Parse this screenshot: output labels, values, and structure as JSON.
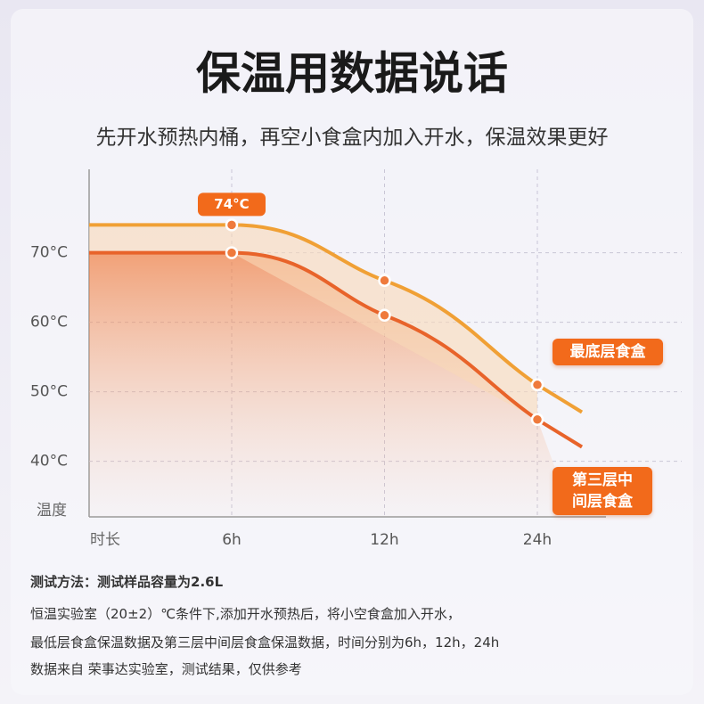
{
  "chart_data": {
    "type": "line",
    "title": "保温用数据说话",
    "subtitle": "先开水预热内桶，再空小食盒内加入开水，保温效果更好",
    "x_label": "时长",
    "y_label": "温度",
    "categories": [
      "6h",
      "12h",
      "24h"
    ],
    "series": [
      {
        "name": "最底层食盒",
        "color": "#f0a035",
        "values": [
          74,
          66,
          51
        ],
        "value_labels": [
          "74°C",
          null,
          null
        ]
      },
      {
        "name": "第三层中间层食盒",
        "color": "#e8632a",
        "values": [
          70,
          61,
          46
        ]
      }
    ],
    "ylim": [
      32,
      82
    ],
    "yticks": [
      {
        "value": 40,
        "label": "40°C"
      },
      {
        "value": 50,
        "label": "50°C"
      },
      {
        "value": 60,
        "label": "60°C"
      },
      {
        "value": 70,
        "label": "70°C"
      }
    ],
    "grid": true,
    "notes": [
      "测试方法：测试样品容量为2.6L",
      "恒温实验室（20±2）℃条件下,添加开水预热后，将小空食盒加入开水，",
      "最低层食盒保温数据及第三层中间层食盒保温数据，时间分别为6h，12h，24h",
      "数据来自 荣事达实验室，测试结果，仅供参考"
    ]
  }
}
